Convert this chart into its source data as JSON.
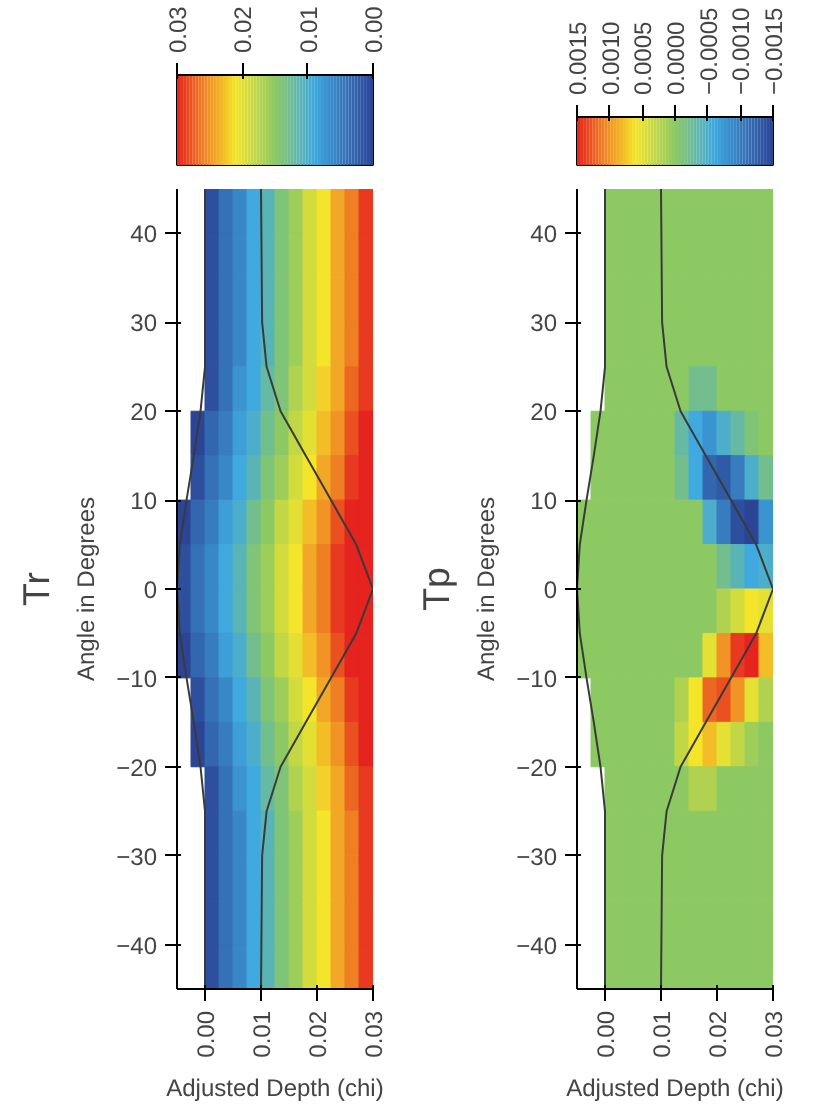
{
  "chart_data": [
    {
      "type": "heatmap",
      "title": "Tr",
      "xlabel": "Adjusted Depth (chi)",
      "ylabel": "Angle in Degrees",
      "x": [
        -0.00375,
        -0.00125,
        0.00125,
        0.00375,
        0.00625,
        0.00875,
        0.01125,
        0.01375,
        0.01625,
        0.01875,
        0.02125,
        0.02375,
        0.02625,
        0.02875
      ],
      "y": [
        42.5,
        37.5,
        32.5,
        27.5,
        22.5,
        17.5,
        12.5,
        7.5,
        2.5,
        -2.5,
        -7.5,
        -12.5,
        -17.5,
        -22.5,
        -27.5,
        -32.5,
        -37.5,
        -42.5
      ],
      "cells": [
        [
          null,
          null,
          0.001,
          0.004,
          0.006,
          0.009,
          0.011,
          0.014,
          0.016,
          0.019,
          0.021,
          0.024,
          0.026,
          0.029
        ],
        [
          null,
          null,
          0.001,
          0.004,
          0.006,
          0.009,
          0.011,
          0.014,
          0.016,
          0.019,
          0.021,
          0.024,
          0.026,
          0.029
        ],
        [
          null,
          null,
          0.001,
          0.004,
          0.006,
          0.009,
          0.011,
          0.014,
          0.016,
          0.019,
          0.021,
          0.024,
          0.026,
          0.029
        ],
        [
          null,
          null,
          0.001,
          0.004,
          0.006,
          0.009,
          0.011,
          0.014,
          0.016,
          0.019,
          0.021,
          0.024,
          0.026,
          0.029
        ],
        [
          null,
          null,
          0.001,
          0.004,
          0.007,
          0.009,
          0.012,
          0.014,
          0.017,
          0.019,
          0.022,
          0.024,
          0.027,
          0.029
        ],
        [
          null,
          0.0,
          0.003,
          0.005,
          0.008,
          0.01,
          0.013,
          0.015,
          0.018,
          0.02,
          0.023,
          0.025,
          0.028,
          0.03
        ],
        [
          null,
          0.001,
          0.004,
          0.006,
          0.009,
          0.011,
          0.014,
          0.016,
          0.019,
          0.021,
          0.024,
          0.026,
          0.029,
          0.03
        ],
        [
          0.0,
          0.003,
          0.005,
          0.008,
          0.01,
          0.013,
          0.015,
          0.018,
          0.02,
          0.023,
          0.025,
          0.028,
          0.03,
          0.03
        ],
        [
          0.001,
          0.004,
          0.006,
          0.009,
          0.011,
          0.014,
          0.016,
          0.019,
          0.021,
          0.024,
          0.026,
          0.029,
          0.03,
          0.03
        ],
        [
          0.001,
          0.004,
          0.006,
          0.009,
          0.011,
          0.014,
          0.016,
          0.019,
          0.021,
          0.024,
          0.026,
          0.029,
          0.03,
          0.03
        ],
        [
          0.0,
          0.003,
          0.005,
          0.008,
          0.01,
          0.013,
          0.015,
          0.018,
          0.02,
          0.023,
          0.025,
          0.028,
          0.03,
          0.03
        ],
        [
          null,
          0.001,
          0.004,
          0.006,
          0.009,
          0.011,
          0.014,
          0.016,
          0.019,
          0.021,
          0.024,
          0.026,
          0.029,
          0.03
        ],
        [
          null,
          0.0,
          0.003,
          0.005,
          0.008,
          0.01,
          0.013,
          0.015,
          0.018,
          0.02,
          0.023,
          0.025,
          0.028,
          0.03
        ],
        [
          null,
          null,
          0.001,
          0.004,
          0.007,
          0.009,
          0.012,
          0.014,
          0.017,
          0.019,
          0.022,
          0.024,
          0.027,
          0.029
        ],
        [
          null,
          null,
          0.001,
          0.004,
          0.006,
          0.009,
          0.011,
          0.014,
          0.016,
          0.019,
          0.021,
          0.024,
          0.026,
          0.029
        ],
        [
          null,
          null,
          0.001,
          0.004,
          0.006,
          0.009,
          0.011,
          0.014,
          0.016,
          0.019,
          0.021,
          0.024,
          0.026,
          0.029
        ],
        [
          null,
          null,
          0.001,
          0.004,
          0.006,
          0.009,
          0.011,
          0.014,
          0.016,
          0.019,
          0.021,
          0.024,
          0.026,
          0.029
        ],
        [
          null,
          null,
          0.001,
          0.004,
          0.006,
          0.009,
          0.011,
          0.014,
          0.016,
          0.019,
          0.021,
          0.024,
          0.026,
          0.029
        ]
      ],
      "clim": [
        0.03,
        0.0
      ],
      "cticks": [
        {
          "value": 0.03,
          "label": "0.03"
        },
        {
          "value": 0.02,
          "label": "0.02"
        },
        {
          "value": 0.01,
          "label": "0.01"
        },
        {
          "value": 0.0,
          "label": "0.00"
        }
      ],
      "xlim": [
        -0.005,
        0.03
      ],
      "xticks": [
        {
          "value": 0.0,
          "label": "0.00"
        },
        {
          "value": 0.01,
          "label": "0.01"
        },
        {
          "value": 0.02,
          "label": "0.02"
        },
        {
          "value": 0.03,
          "label": "0.03"
        }
      ],
      "ylim": [
        -45,
        45
      ],
      "yticks": [
        -40,
        -30,
        -20,
        -10,
        0,
        10,
        20,
        30,
        40
      ],
      "series": [
        {
          "type": "line",
          "color": "#3a3a3a",
          "x": [
            0.01,
            0.0102,
            0.011,
            0.0135,
            0.018,
            0.0225,
            0.027,
            0.03,
            0.027,
            0.0225,
            0.018,
            0.0135,
            0.011,
            0.0102,
            0.01
          ],
          "values": [
            -45,
            -30,
            -25,
            -20,
            -15,
            -10,
            -5,
            0,
            5,
            10,
            15,
            20,
            25,
            30,
            45
          ]
        },
        {
          "type": "line",
          "color": "#3a3a3a",
          "x": [
            0.0,
            0.0,
            -0.0008,
            -0.002,
            -0.0033,
            -0.0045,
            -0.005,
            -0.0045,
            -0.0033,
            -0.002,
            -0.0008,
            0.0,
            0.0
          ],
          "values": [
            -45,
            -25,
            -20,
            -15,
            -10,
            -5,
            0,
            5,
            10,
            15,
            20,
            25,
            45
          ]
        }
      ]
    },
    {
      "type": "heatmap",
      "title": "Tp",
      "xlabel": "Adjusted Depth (chi)",
      "ylabel": "Angle in Degrees",
      "x": [
        -0.00375,
        -0.00125,
        0.00125,
        0.00375,
        0.00625,
        0.00875,
        0.01125,
        0.01375,
        0.01625,
        0.01875,
        0.02125,
        0.02375,
        0.02625,
        0.02875
      ],
      "y": [
        42.5,
        37.5,
        32.5,
        27.5,
        22.5,
        17.5,
        12.5,
        7.5,
        2.5,
        -2.5,
        -7.5,
        -12.5,
        -17.5,
        -22.5,
        -27.5,
        -32.5,
        -37.5,
        -42.5
      ],
      "cells": [
        [
          null,
          null,
          0,
          0,
          0,
          0,
          0,
          0,
          0,
          0,
          0,
          0,
          0,
          0
        ],
        [
          null,
          null,
          0,
          0,
          0,
          0,
          0,
          0,
          0,
          0,
          0,
          0,
          0,
          0
        ],
        [
          null,
          null,
          0,
          0,
          0,
          0,
          0,
          0,
          0,
          0,
          0,
          0,
          0,
          0
        ],
        [
          null,
          null,
          0,
          0,
          0,
          0,
          0,
          0,
          0,
          0,
          0,
          0,
          0,
          0
        ],
        [
          null,
          null,
          0,
          0,
          0,
          0,
          0,
          0,
          -0.0002,
          -0.0002,
          0,
          0,
          0,
          0
        ],
        [
          null,
          0,
          0,
          0,
          0,
          0,
          0,
          -0.0003,
          -0.0006,
          -0.0008,
          -0.0005,
          -0.0003,
          -0.0001,
          0
        ],
        [
          null,
          0,
          0,
          0,
          0,
          0,
          0,
          -0.0002,
          -0.0006,
          -0.0012,
          -0.0013,
          -0.001,
          -0.0005,
          -0.0002
        ],
        [
          0,
          0,
          0,
          0,
          0,
          0,
          0,
          0,
          0,
          -0.0005,
          -0.001,
          -0.0014,
          -0.0015,
          -0.0008
        ],
        [
          0,
          0,
          0,
          0,
          0,
          0,
          0,
          0,
          0,
          0,
          -0.0002,
          -0.0004,
          -0.0006,
          -0.0005
        ],
        [
          0,
          0,
          0,
          0,
          0,
          0,
          0,
          0,
          0,
          0,
          0.0002,
          0.0004,
          0.0006,
          0.0005
        ],
        [
          0,
          0,
          0,
          0,
          0,
          0,
          0,
          0,
          0,
          0.0005,
          0.001,
          0.0014,
          0.0015,
          0.0008
        ],
        [
          null,
          0,
          0,
          0,
          0,
          0,
          0,
          0.0002,
          0.0006,
          0.0012,
          0.0013,
          0.001,
          0.0005,
          0.0002
        ],
        [
          null,
          0,
          0,
          0,
          0,
          0,
          0,
          0.0003,
          0.0006,
          0.0008,
          0.0005,
          0.0003,
          0.0001,
          0
        ],
        [
          null,
          null,
          0,
          0,
          0,
          0,
          0,
          0,
          0.0002,
          0.0002,
          0,
          0,
          0,
          0
        ],
        [
          null,
          null,
          0,
          0,
          0,
          0,
          0,
          0,
          0,
          0,
          0,
          0,
          0,
          0
        ],
        [
          null,
          null,
          0,
          0,
          0,
          0,
          0,
          0,
          0,
          0,
          0,
          0,
          0,
          0
        ],
        [
          null,
          null,
          0,
          0,
          0,
          0,
          0,
          0,
          0,
          0,
          0,
          0,
          0,
          0
        ],
        [
          null,
          null,
          0,
          0,
          0,
          0,
          0,
          0,
          0,
          0,
          0,
          0,
          0,
          0
        ]
      ],
      "clim": [
        0.0015,
        -0.0015
      ],
      "cticks": [
        {
          "value": 0.0015,
          "label": "0.0015"
        },
        {
          "value": 0.001,
          "label": "0.0010"
        },
        {
          "value": 0.0005,
          "label": "0.0005"
        },
        {
          "value": 0.0,
          "label": "0.0000"
        },
        {
          "value": -0.0005,
          "label": "−0.0005"
        },
        {
          "value": -0.001,
          "label": "−0.0010"
        },
        {
          "value": -0.0015,
          "label": "−0.0015"
        }
      ],
      "xlim": [
        -0.005,
        0.03
      ],
      "xticks": [
        {
          "value": 0.0,
          "label": "0.00"
        },
        {
          "value": 0.01,
          "label": "0.01"
        },
        {
          "value": 0.02,
          "label": "0.02"
        },
        {
          "value": 0.03,
          "label": "0.03"
        }
      ],
      "ylim": [
        -45,
        45
      ],
      "yticks": [
        -40,
        -30,
        -20,
        -10,
        0,
        10,
        20,
        30,
        40
      ],
      "series": [
        {
          "type": "line",
          "color": "#3a3a3a",
          "x": [
            0.01,
            0.0102,
            0.011,
            0.0135,
            0.018,
            0.0225,
            0.027,
            0.03,
            0.027,
            0.0225,
            0.018,
            0.0135,
            0.011,
            0.0102,
            0.01
          ],
          "values": [
            -45,
            -30,
            -25,
            -20,
            -15,
            -10,
            -5,
            0,
            5,
            10,
            15,
            20,
            25,
            30,
            45
          ]
        },
        {
          "type": "line",
          "color": "#3a3a3a",
          "x": [
            0.0,
            0.0,
            -0.0008,
            -0.002,
            -0.0033,
            -0.0045,
            -0.005,
            -0.0045,
            -0.0033,
            -0.002,
            -0.0008,
            0.0,
            0.0
          ],
          "values": [
            -45,
            -25,
            -20,
            -15,
            -10,
            -5,
            0,
            5,
            10,
            15,
            20,
            25,
            45
          ]
        }
      ]
    }
  ]
}
